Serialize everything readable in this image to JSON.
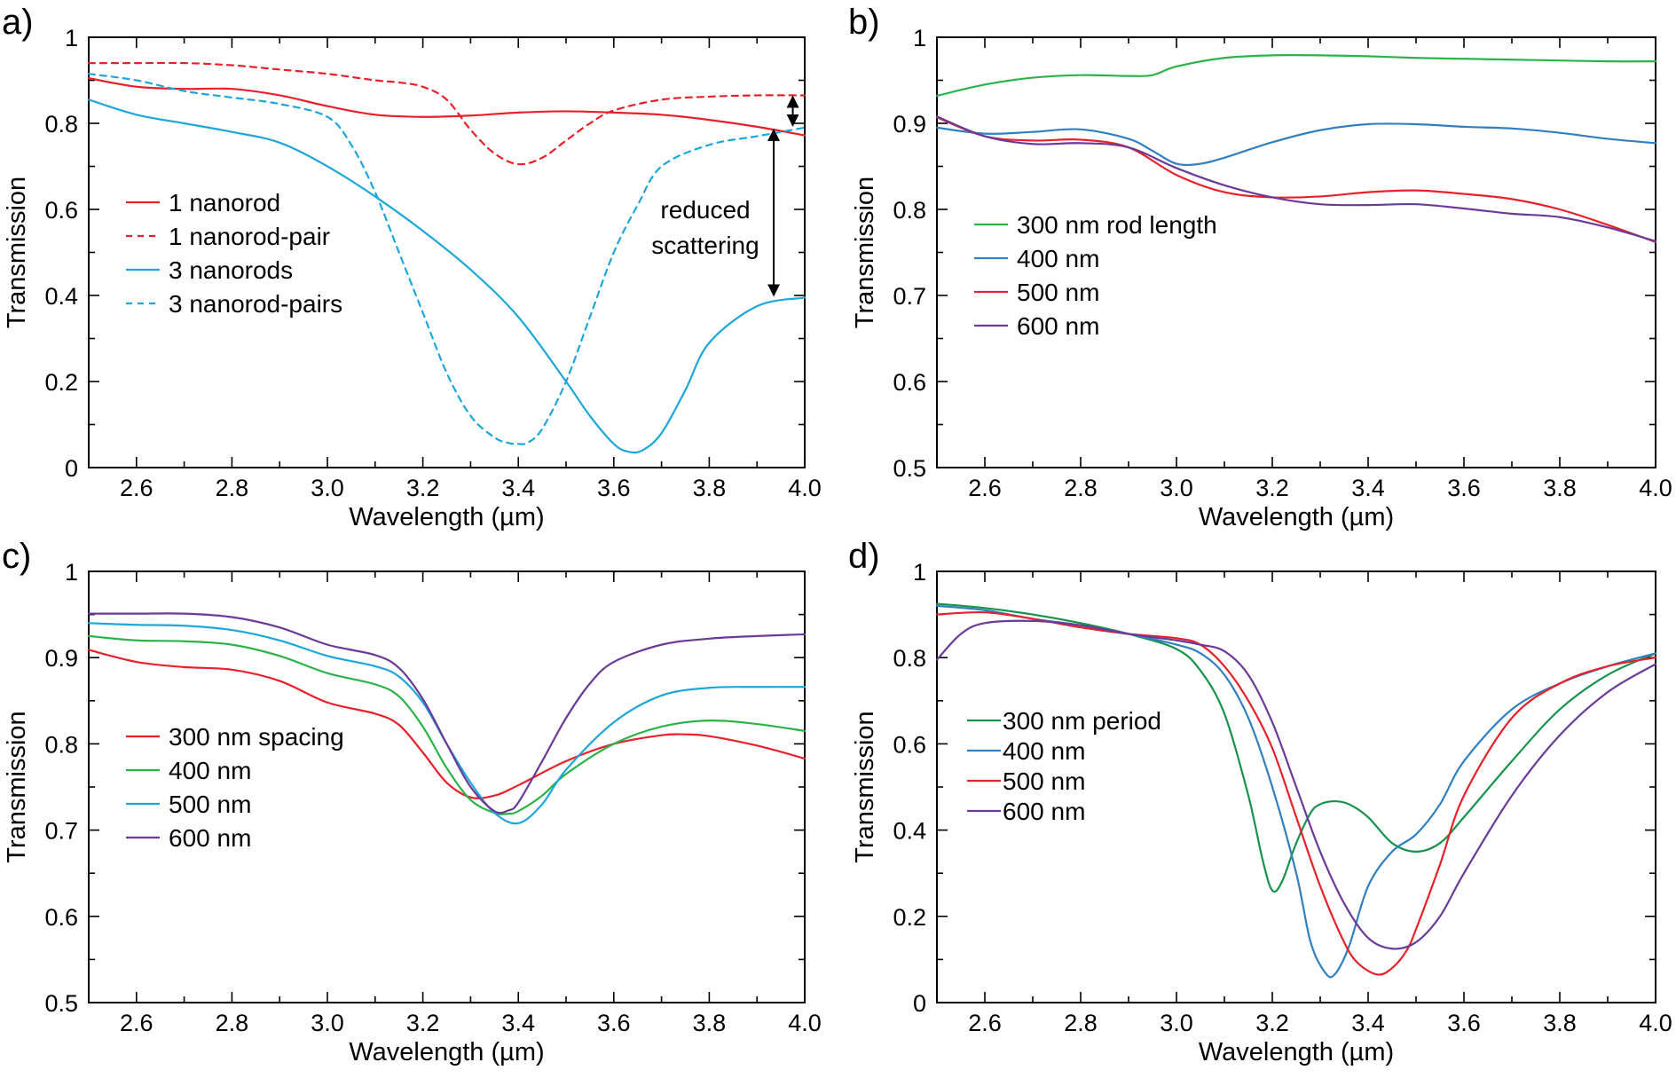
{
  "figure": {
    "xlabel": "Wavelength (µm)",
    "ylabel": "Transmission"
  },
  "colors": {
    "red": "#e8202a",
    "blue": "#1ca6dc",
    "green": "#2bb34a",
    "purple": "#6b3a98",
    "dkgreen": "#16934a",
    "dkblue": "#2f7fc1",
    "black": "#000000"
  },
  "chart_data": [
    {
      "panel": "a)",
      "type": "line",
      "xlabel": "Wavelength (µm)",
      "ylabel": "Transmission",
      "xlim": [
        2.5,
        4.0
      ],
      "ylim": [
        0,
        1
      ],
      "xticks": [
        2.6,
        2.8,
        3.0,
        3.2,
        3.4,
        3.6,
        3.8,
        4.0
      ],
      "xtick_labels": [
        "2.6",
        "2.8",
        "3.0",
        "3.2",
        "3.4",
        "3.6",
        "3.8",
        "4.0"
      ],
      "yticks": [
        0,
        0.2,
        0.4,
        0.6,
        0.8,
        1
      ],
      "ytick_labels": [
        "0",
        "0.2",
        "0.4",
        "0.6",
        "0.8",
        "1"
      ],
      "legend_position": "left",
      "series": [
        {
          "name": "1 nanorod",
          "color": "red",
          "dash": false,
          "x": [
            2.5,
            2.6,
            2.7,
            2.8,
            2.9,
            3.0,
            3.1,
            3.2,
            3.3,
            3.4,
            3.5,
            3.6,
            3.7,
            3.8,
            3.9,
            4.0
          ],
          "y": [
            0.905,
            0.885,
            0.88,
            0.88,
            0.865,
            0.84,
            0.82,
            0.815,
            0.818,
            0.825,
            0.828,
            0.825,
            0.82,
            0.808,
            0.792,
            0.772
          ]
        },
        {
          "name": "1 nanorod-pair",
          "color": "red",
          "dash": true,
          "x": [
            2.5,
            2.6,
            2.7,
            2.8,
            2.9,
            3.0,
            3.1,
            3.15,
            3.2,
            3.25,
            3.3,
            3.35,
            3.4,
            3.45,
            3.5,
            3.55,
            3.6,
            3.7,
            3.8,
            3.9,
            4.0
          ],
          "y": [
            0.94,
            0.94,
            0.94,
            0.935,
            0.925,
            0.915,
            0.9,
            0.895,
            0.885,
            0.855,
            0.785,
            0.73,
            0.705,
            0.72,
            0.76,
            0.8,
            0.83,
            0.855,
            0.862,
            0.865,
            0.865
          ]
        },
        {
          "name": "3 nanorods",
          "color": "blue",
          "dash": false,
          "x": [
            2.5,
            2.6,
            2.7,
            2.8,
            2.9,
            3.0,
            3.1,
            3.2,
            3.3,
            3.4,
            3.5,
            3.55,
            3.6,
            3.63,
            3.66,
            3.7,
            3.75,
            3.8,
            3.9,
            4.0
          ],
          "y": [
            0.855,
            0.82,
            0.8,
            0.78,
            0.755,
            0.7,
            0.63,
            0.55,
            0.46,
            0.35,
            0.2,
            0.12,
            0.055,
            0.037,
            0.04,
            0.08,
            0.18,
            0.29,
            0.375,
            0.395
          ]
        },
        {
          "name": "3 nanorod-pairs",
          "color": "blue",
          "dash": true,
          "x": [
            2.5,
            2.6,
            2.7,
            2.8,
            2.9,
            3.0,
            3.05,
            3.1,
            3.15,
            3.2,
            3.25,
            3.3,
            3.35,
            3.38,
            3.4,
            3.42,
            3.45,
            3.5,
            3.55,
            3.6,
            3.65,
            3.7,
            3.8,
            3.9,
            4.0
          ],
          "y": [
            0.915,
            0.9,
            0.875,
            0.86,
            0.845,
            0.815,
            0.75,
            0.64,
            0.5,
            0.36,
            0.22,
            0.12,
            0.07,
            0.057,
            0.055,
            0.058,
            0.09,
            0.2,
            0.35,
            0.5,
            0.61,
            0.7,
            0.75,
            0.77,
            0.79
          ]
        }
      ],
      "annotations": [
        {
          "text_lines": [
            "reduced",
            "scattering"
          ]
        }
      ],
      "arrows": [
        {
          "x": 3.935,
          "y1": 0.785,
          "y2": 0.4
        },
        {
          "x": 3.975,
          "y1": 0.862,
          "y2": 0.795
        }
      ]
    },
    {
      "panel": "b)",
      "type": "line",
      "xlabel": "Wavelength (µm)",
      "ylabel": "Transmission",
      "xlim": [
        2.5,
        4.0
      ],
      "ylim": [
        0.5,
        1
      ],
      "xticks": [
        2.6,
        2.8,
        3.0,
        3.2,
        3.4,
        3.6,
        3.8,
        4.0
      ],
      "xtick_labels": [
        "2.6",
        "2.8",
        "3.0",
        "3.2",
        "3.4",
        "3.6",
        "3.8",
        "4.0"
      ],
      "yticks": [
        0.5,
        0.6,
        0.7,
        0.8,
        0.9,
        1
      ],
      "ytick_labels": [
        "0.5",
        "0.6",
        "0.7",
        "0.8",
        "0.9",
        "1"
      ],
      "legend_position": "left",
      "series": [
        {
          "name": "300 nm rod length",
          "color": "green",
          "dash": false,
          "x": [
            2.5,
            2.6,
            2.7,
            2.8,
            2.9,
            2.95,
            3.0,
            3.1,
            3.2,
            3.3,
            3.4,
            3.5,
            3.6,
            3.7,
            3.8,
            3.9,
            4.0
          ],
          "y": [
            0.932,
            0.945,
            0.953,
            0.956,
            0.955,
            0.956,
            0.966,
            0.976,
            0.979,
            0.979,
            0.978,
            0.976,
            0.975,
            0.974,
            0.973,
            0.972,
            0.972
          ]
        },
        {
          "name": "400 nm",
          "color": "dkblue",
          "dash": false,
          "x": [
            2.5,
            2.6,
            2.7,
            2.8,
            2.9,
            2.95,
            3.0,
            3.05,
            3.1,
            3.2,
            3.3,
            3.4,
            3.5,
            3.6,
            3.7,
            3.8,
            3.9,
            4.0
          ],
          "y": [
            0.895,
            0.888,
            0.89,
            0.893,
            0.882,
            0.868,
            0.853,
            0.853,
            0.86,
            0.878,
            0.892,
            0.899,
            0.899,
            0.896,
            0.894,
            0.889,
            0.882,
            0.877
          ]
        },
        {
          "name": "500 nm",
          "color": "red",
          "dash": false,
          "x": [
            2.5,
            2.6,
            2.7,
            2.8,
            2.9,
            3.0,
            3.1,
            3.2,
            3.3,
            3.4,
            3.5,
            3.6,
            3.7,
            3.8,
            3.9,
            4.0
          ],
          "y": [
            0.907,
            0.885,
            0.88,
            0.881,
            0.872,
            0.84,
            0.82,
            0.814,
            0.815,
            0.82,
            0.822,
            0.818,
            0.812,
            0.8,
            0.782,
            0.762
          ]
        },
        {
          "name": "600 nm",
          "color": "purple",
          "dash": false,
          "x": [
            2.5,
            2.6,
            2.7,
            2.8,
            2.9,
            3.0,
            3.1,
            3.2,
            3.3,
            3.4,
            3.5,
            3.6,
            3.7,
            3.8,
            3.9,
            4.0
          ],
          "y": [
            0.908,
            0.885,
            0.876,
            0.877,
            0.872,
            0.848,
            0.828,
            0.814,
            0.806,
            0.805,
            0.806,
            0.801,
            0.795,
            0.791,
            0.779,
            0.763
          ]
        }
      ]
    },
    {
      "panel": "c)",
      "type": "line",
      "xlabel": "Wavelength (µm)",
      "ylabel": "Transmission",
      "xlim": [
        2.5,
        4.0
      ],
      "ylim": [
        0.5,
        1
      ],
      "xticks": [
        2.6,
        2.8,
        3.0,
        3.2,
        3.4,
        3.6,
        3.8,
        4.0
      ],
      "xtick_labels": [
        "2.6",
        "2.8",
        "3.0",
        "3.2",
        "3.4",
        "3.6",
        "3.8",
        "4.0"
      ],
      "yticks": [
        0.5,
        0.6,
        0.7,
        0.8,
        0.9,
        1
      ],
      "ytick_labels": [
        "0.5",
        "0.6",
        "0.7",
        "0.8",
        "0.9",
        "1"
      ],
      "legend_position": "left",
      "series": [
        {
          "name": "300 nm spacing",
          "color": "red",
          "dash": false,
          "x": [
            2.5,
            2.6,
            2.7,
            2.8,
            2.9,
            3.0,
            3.1,
            3.15,
            3.2,
            3.25,
            3.3,
            3.35,
            3.4,
            3.5,
            3.6,
            3.7,
            3.75,
            3.8,
            3.9,
            4.0
          ],
          "y": [
            0.909,
            0.895,
            0.889,
            0.886,
            0.873,
            0.848,
            0.835,
            0.822,
            0.79,
            0.755,
            0.738,
            0.74,
            0.752,
            0.78,
            0.8,
            0.81,
            0.811,
            0.809,
            0.798,
            0.783
          ]
        },
        {
          "name": "400 nm",
          "color": "green",
          "dash": false,
          "x": [
            2.5,
            2.6,
            2.7,
            2.8,
            2.9,
            3.0,
            3.1,
            3.15,
            3.2,
            3.25,
            3.3,
            3.35,
            3.38,
            3.4,
            3.45,
            3.5,
            3.6,
            3.7,
            3.8,
            3.9,
            4.0
          ],
          "y": [
            0.925,
            0.92,
            0.919,
            0.915,
            0.902,
            0.882,
            0.869,
            0.855,
            0.82,
            0.772,
            0.735,
            0.72,
            0.719,
            0.722,
            0.74,
            0.765,
            0.8,
            0.82,
            0.827,
            0.823,
            0.815
          ]
        },
        {
          "name": "500 nm",
          "color": "blue",
          "dash": false,
          "x": [
            2.5,
            2.6,
            2.7,
            2.8,
            2.9,
            3.0,
            3.1,
            3.15,
            3.2,
            3.25,
            3.3,
            3.35,
            3.4,
            3.45,
            3.5,
            3.6,
            3.7,
            3.8,
            3.9,
            4.0
          ],
          "y": [
            0.94,
            0.938,
            0.937,
            0.932,
            0.92,
            0.902,
            0.89,
            0.878,
            0.848,
            0.8,
            0.755,
            0.72,
            0.708,
            0.73,
            0.77,
            0.825,
            0.856,
            0.865,
            0.866,
            0.866
          ]
        },
        {
          "name": "600 nm",
          "color": "purple",
          "dash": false,
          "x": [
            2.5,
            2.6,
            2.7,
            2.8,
            2.9,
            3.0,
            3.1,
            3.15,
            3.2,
            3.25,
            3.3,
            3.35,
            3.38,
            3.4,
            3.45,
            3.5,
            3.55,
            3.6,
            3.7,
            3.8,
            3.9,
            4.0
          ],
          "y": [
            0.951,
            0.951,
            0.951,
            0.947,
            0.935,
            0.915,
            0.903,
            0.888,
            0.852,
            0.8,
            0.75,
            0.722,
            0.723,
            0.732,
            0.78,
            0.83,
            0.87,
            0.895,
            0.915,
            0.922,
            0.925,
            0.927
          ]
        }
      ]
    },
    {
      "panel": "d)",
      "type": "line",
      "xlabel": "Wavelength (µm)",
      "ylabel": "Transmission",
      "xlim": [
        2.5,
        4.0
      ],
      "ylim": [
        0,
        1
      ],
      "xticks": [
        2.6,
        2.8,
        3.0,
        3.2,
        3.4,
        3.6,
        3.8,
        4.0
      ],
      "xtick_labels": [
        "2.6",
        "2.8",
        "3.0",
        "3.2",
        "3.4",
        "3.6",
        "3.8",
        "4.0"
      ],
      "yticks": [
        0,
        0.2,
        0.4,
        0.6,
        0.8,
        1
      ],
      "ytick_labels": [
        "0",
        "0.2",
        "0.4",
        "0.6",
        "0.8",
        "1"
      ],
      "legend_position": "left",
      "series": [
        {
          "name": "300 nm period",
          "color": "dkgreen",
          "dash": false,
          "x": [
            2.5,
            2.6,
            2.7,
            2.8,
            2.9,
            3.0,
            3.05,
            3.1,
            3.15,
            3.18,
            3.2,
            3.22,
            3.25,
            3.28,
            3.3,
            3.33,
            3.36,
            3.4,
            3.45,
            3.5,
            3.55,
            3.6,
            3.7,
            3.8,
            3.9,
            4.0
          ],
          "y": [
            0.925,
            0.915,
            0.9,
            0.88,
            0.855,
            0.82,
            0.77,
            0.67,
            0.48,
            0.33,
            0.26,
            0.28,
            0.37,
            0.44,
            0.46,
            0.467,
            0.46,
            0.43,
            0.37,
            0.35,
            0.37,
            0.43,
            0.56,
            0.68,
            0.76,
            0.81
          ]
        },
        {
          "name": "400 nm",
          "color": "dkblue",
          "dash": false,
          "x": [
            2.5,
            2.6,
            2.7,
            2.8,
            2.9,
            3.0,
            3.05,
            3.1,
            3.15,
            3.2,
            3.25,
            3.28,
            3.31,
            3.33,
            3.36,
            3.4,
            3.45,
            3.5,
            3.55,
            3.6,
            3.7,
            3.8,
            3.9,
            4.0
          ],
          "y": [
            0.92,
            0.91,
            0.89,
            0.875,
            0.855,
            0.83,
            0.81,
            0.76,
            0.66,
            0.5,
            0.3,
            0.14,
            0.07,
            0.065,
            0.13,
            0.27,
            0.35,
            0.39,
            0.46,
            0.56,
            0.68,
            0.74,
            0.78,
            0.81
          ]
        },
        {
          "name": "500 nm",
          "color": "red",
          "dash": false,
          "x": [
            2.5,
            2.6,
            2.7,
            2.8,
            2.9,
            3.0,
            3.05,
            3.1,
            3.15,
            3.2,
            3.25,
            3.3,
            3.35,
            3.38,
            3.42,
            3.45,
            3.48,
            3.5,
            3.55,
            3.6,
            3.7,
            3.8,
            3.9,
            4.0
          ],
          "y": [
            0.9,
            0.905,
            0.89,
            0.87,
            0.855,
            0.845,
            0.83,
            0.78,
            0.7,
            0.59,
            0.43,
            0.27,
            0.14,
            0.09,
            0.065,
            0.08,
            0.12,
            0.17,
            0.32,
            0.48,
            0.66,
            0.74,
            0.78,
            0.8
          ]
        },
        {
          "name": "600 nm",
          "color": "purple",
          "dash": false,
          "x": [
            2.5,
            2.55,
            2.6,
            2.7,
            2.8,
            2.9,
            3.0,
            3.05,
            3.1,
            3.15,
            3.2,
            3.25,
            3.3,
            3.35,
            3.4,
            3.45,
            3.5,
            3.55,
            3.6,
            3.7,
            3.8,
            3.9,
            4.0
          ],
          "y": [
            0.795,
            0.855,
            0.88,
            0.885,
            0.875,
            0.855,
            0.84,
            0.83,
            0.815,
            0.76,
            0.65,
            0.5,
            0.35,
            0.23,
            0.15,
            0.125,
            0.14,
            0.2,
            0.3,
            0.48,
            0.62,
            0.72,
            0.785
          ]
        }
      ]
    }
  ]
}
